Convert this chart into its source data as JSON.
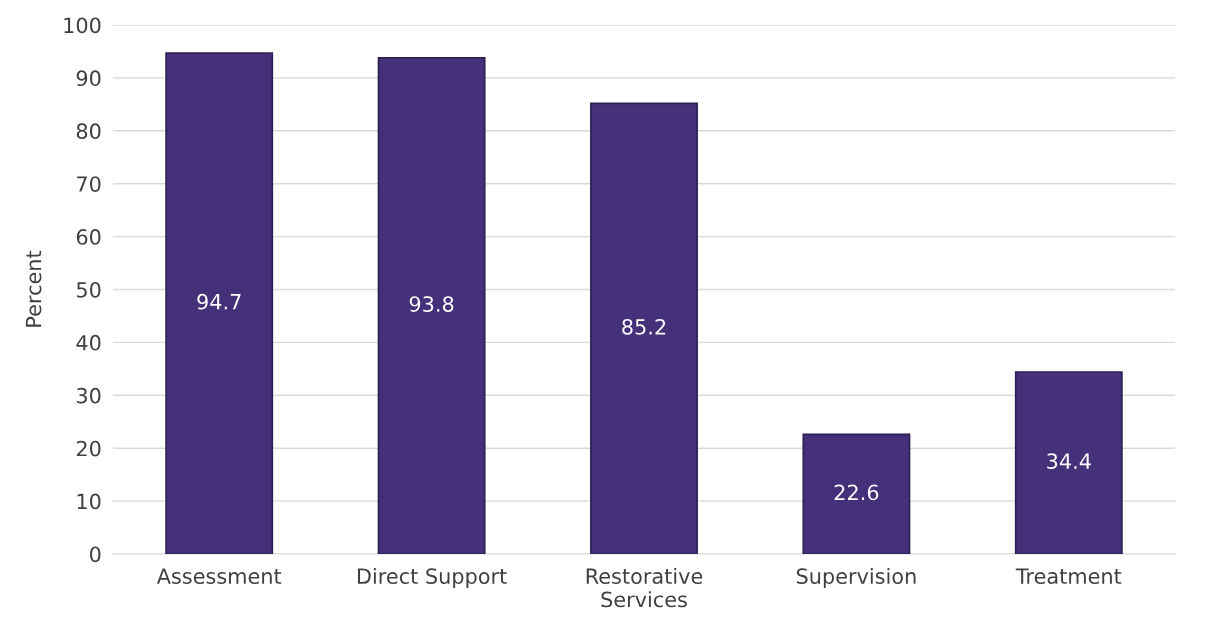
{
  "chart_data": {
    "type": "bar",
    "ylabel": "Percent",
    "categories": [
      "Assessment",
      "Direct Support",
      "Restorative\nServices",
      "Supervision",
      "Treatment"
    ],
    "values": [
      94.7,
      93.8,
      85.2,
      22.6,
      34.4
    ],
    "color": "#44317a",
    "ylim": [
      0,
      100
    ],
    "yticks": [
      0,
      10,
      20,
      30,
      40,
      50,
      60,
      70,
      80,
      90,
      100
    ],
    "grid": "y",
    "data_labels": true
  }
}
